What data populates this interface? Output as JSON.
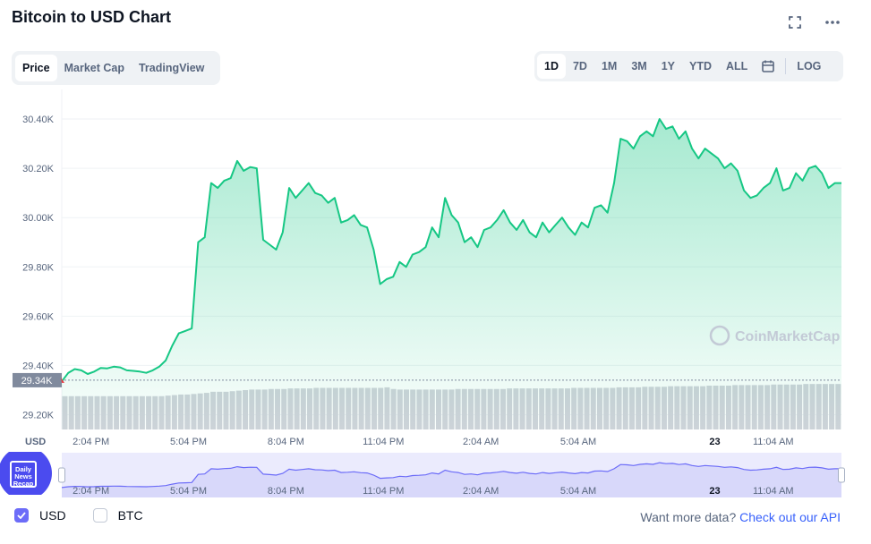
{
  "header": {
    "title": "Bitcoin to USD Chart"
  },
  "tabs": [
    {
      "label": "Price",
      "active": true
    },
    {
      "label": "Market Cap",
      "active": false
    },
    {
      "label": "TradingView",
      "active": false
    }
  ],
  "ranges": [
    {
      "label": "1D",
      "active": true
    },
    {
      "label": "7D",
      "active": false
    },
    {
      "label": "1M",
      "active": false
    },
    {
      "label": "3M",
      "active": false
    },
    {
      "label": "1Y",
      "active": false
    },
    {
      "label": "YTD",
      "active": false
    },
    {
      "label": "ALL",
      "active": false
    }
  ],
  "log_label": "LOG",
  "icons": {
    "fullscreen": "expand-icon",
    "more": "more-dots-icon",
    "calendar": "calendar-icon"
  },
  "colors": {
    "line": "#16c784",
    "accent": "#6c6cf8",
    "open_marker": "#ea3943"
  },
  "watermark": "CoinMarketCap",
  "badge_text": [
    "Daily",
    "News",
    "Recap"
  ],
  "currency": {
    "usd_label": "USD",
    "btc_label": "BTC",
    "usd_checked": true,
    "btc_checked": false
  },
  "footer": {
    "text": "Want more data?",
    "link": "Check out our API"
  },
  "chart_data": {
    "type": "area",
    "title": "Bitcoin to USD Chart",
    "ylabel": "USD",
    "ylim": [
      29140,
      30520
    ],
    "yticks": [
      "30.40K",
      "30.20K",
      "30.00K",
      "29.80K",
      "29.60K",
      "29.40K",
      "29.20K"
    ],
    "ytick_values": [
      30400,
      30200,
      30000,
      29800,
      29600,
      29400,
      29200
    ],
    "current_price_label": "29.34K",
    "current_price": 29340,
    "xticks": [
      "2:04 PM",
      "5:04 PM",
      "8:04 PM",
      "11:04 PM",
      "2:04 AM",
      "5:04 AM",
      "23",
      "11:04 AM"
    ],
    "xtick_hours": [
      0.9,
      3.9,
      6.9,
      9.9,
      12.9,
      15.9,
      20.1,
      21.9
    ],
    "x_range_hours": [
      0,
      24
    ],
    "grid": true,
    "points_hours": [
      0,
      0.2,
      0.4,
      0.6,
      0.8,
      1.0,
      1.2,
      1.4,
      1.6,
      1.8,
      2.0,
      2.2,
      2.4,
      2.6,
      2.8,
      3.0,
      3.2,
      3.4,
      3.6,
      3.8,
      4.0,
      4.2,
      4.4,
      4.6,
      4.8,
      5.0,
      5.2,
      5.4,
      5.6,
      5.8,
      6.0,
      6.2,
      6.4,
      6.6,
      6.8,
      7.0,
      7.2,
      7.4,
      7.6,
      7.8,
      8.0,
      8.2,
      8.4,
      8.6,
      8.8,
      9.0,
      9.2,
      9.4,
      9.6,
      9.8,
      10.0,
      10.2,
      10.4,
      10.6,
      10.8,
      11.0,
      11.2,
      11.4,
      11.6,
      11.8,
      12.0,
      12.2,
      12.4,
      12.6,
      12.8,
      13.0,
      13.2,
      13.4,
      13.6,
      13.8,
      14.0,
      14.2,
      14.4,
      14.6,
      14.8,
      15.0,
      15.2,
      15.4,
      15.6,
      15.8,
      16.0,
      16.2,
      16.4,
      16.6,
      16.8,
      17.0,
      17.2,
      17.4,
      17.6,
      17.8,
      18.0,
      18.2,
      18.4,
      18.6,
      18.8,
      19.0,
      19.2,
      19.4,
      19.6,
      19.8,
      20.0,
      20.2,
      20.4,
      20.6,
      20.8,
      21.0,
      21.2,
      21.4,
      21.6,
      21.8,
      22.0,
      22.2,
      22.4,
      22.6,
      22.8,
      23.0,
      23.2,
      23.4,
      23.6,
      23.8,
      24.0
    ],
    "series": [
      {
        "values": [
          29335,
          29370,
          29385,
          29380,
          29365,
          29375,
          29390,
          29388,
          29395,
          29392,
          29380,
          29378,
          29375,
          29370,
          29380,
          29395,
          29420,
          29480,
          29530,
          29540,
          29550,
          29900,
          29920,
          30140,
          30120,
          30150,
          30160,
          30230,
          30190,
          30205,
          30200,
          29910,
          29890,
          29870,
          29940,
          30120,
          30080,
          30110,
          30140,
          30100,
          30090,
          30060,
          30080,
          29980,
          29990,
          30010,
          29970,
          29960,
          29870,
          29730,
          29750,
          29760,
          29820,
          29800,
          29850,
          29860,
          29880,
          29960,
          29920,
          30080,
          30010,
          29980,
          29900,
          29920,
          29880,
          29950,
          29960,
          29990,
          30030,
          29980,
          29950,
          29990,
          29940,
          29920,
          29980,
          29940,
          29970,
          30000,
          29960,
          29930,
          29980,
          29960,
          30040,
          30050,
          30020,
          30140,
          30320,
          30310,
          30280,
          30330,
          30350,
          30330,
          30400,
          30360,
          30370,
          30320,
          30350,
          30280,
          30240,
          30280,
          30260,
          30240,
          30200,
          30220,
          30190,
          30110,
          30080,
          30090,
          30120,
          30140,
          30200,
          30110,
          30120,
          30180,
          30150,
          30200,
          30210,
          30180,
          30120,
          30140,
          30140
        ]
      }
    ],
    "volume_relative": [
      0.6,
      0.6,
      0.6,
      0.6,
      0.6,
      0.6,
      0.6,
      0.6,
      0.6,
      0.6,
      0.6,
      0.6,
      0.6,
      0.6,
      0.6,
      0.6,
      0.61,
      0.62,
      0.63,
      0.63,
      0.64,
      0.65,
      0.66,
      0.68,
      0.68,
      0.68,
      0.69,
      0.7,
      0.71,
      0.72,
      0.72,
      0.72,
      0.73,
      0.73,
      0.73,
      0.74,
      0.74,
      0.74,
      0.74,
      0.75,
      0.75,
      0.75,
      0.75,
      0.75,
      0.75,
      0.75,
      0.75,
      0.75,
      0.75,
      0.75,
      0.76,
      0.73,
      0.72,
      0.72,
      0.72,
      0.72,
      0.72,
      0.72,
      0.72,
      0.72,
      0.72,
      0.73,
      0.73,
      0.73,
      0.73,
      0.73,
      0.73,
      0.73,
      0.73,
      0.74,
      0.74,
      0.74,
      0.74,
      0.74,
      0.74,
      0.74,
      0.74,
      0.74,
      0.74,
      0.75,
      0.75,
      0.75,
      0.75,
      0.75,
      0.75,
      0.75,
      0.76,
      0.76,
      0.76,
      0.76,
      0.77,
      0.77,
      0.77,
      0.77,
      0.78,
      0.78,
      0.78,
      0.78,
      0.78,
      0.78,
      0.79,
      0.79,
      0.79,
      0.79,
      0.8,
      0.8,
      0.8,
      0.8,
      0.8,
      0.8,
      0.81,
      0.81,
      0.81,
      0.81,
      0.81,
      0.82,
      0.82,
      0.82,
      0.82,
      0.82,
      0.82
    ]
  }
}
